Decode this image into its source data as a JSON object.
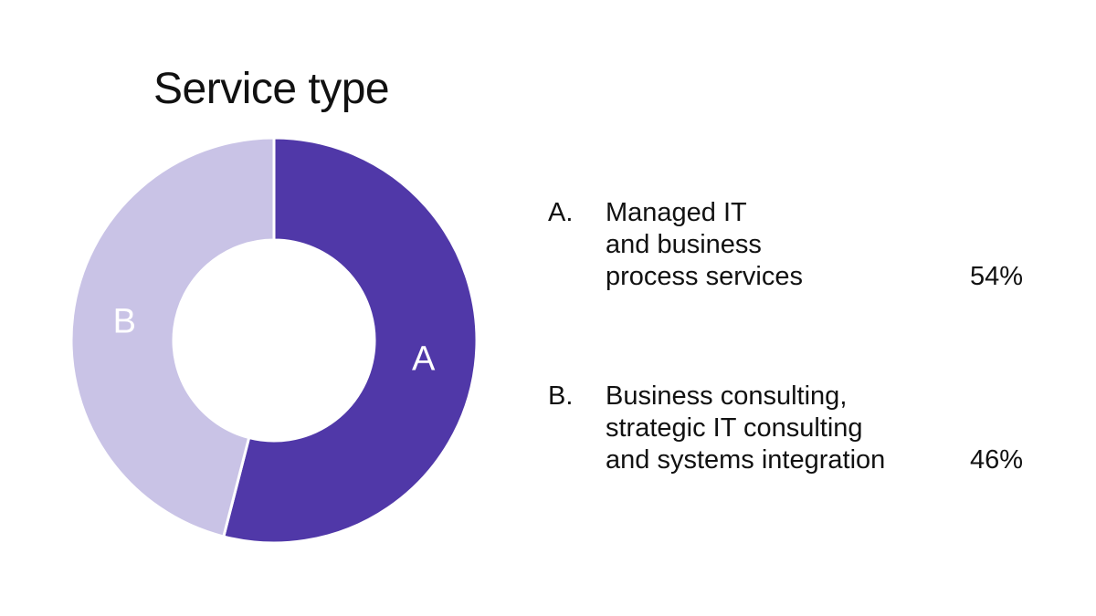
{
  "chart_data": {
    "type": "pie",
    "title": "Service type",
    "slices": [
      {
        "key": "A",
        "letter": "A.",
        "label_lines": [
          "Managed IT",
          "and business",
          "process services"
        ],
        "value": 54,
        "value_label": "54%",
        "color": "#5038a8"
      },
      {
        "key": "B",
        "letter": "B.",
        "label_lines": [
          "Business consulting,",
          "strategic IT consulting",
          "and systems integration"
        ],
        "value": 46,
        "value_label": "46%",
        "color": "#c9c3e6"
      }
    ],
    "legend_placement": "right",
    "style": "donut"
  }
}
